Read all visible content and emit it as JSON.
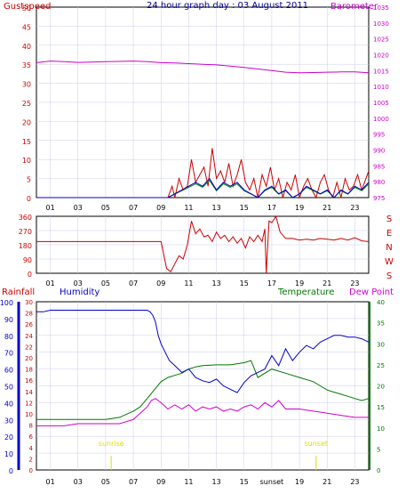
{
  "colors": {
    "gust": "#cc0000",
    "wind_avg": "#0000cc",
    "wind_gust_alt": "#008800",
    "pressure": "#cc00cc",
    "direction": "#cc0000",
    "humidity": "#0000cc",
    "temperature": "#007700",
    "dewpoint": "#cc00cc",
    "rainfall": "#cc0000",
    "title": "#000099",
    "sun": "#dddd00",
    "grid": "#ccccee",
    "frame": "#000000"
  },
  "chart_data": [
    {
      "type": "line",
      "title": "24 hour graph day : 03 August 2011",
      "left_axis_label": "Gustspeed",
      "right_axis_label": "Barometer",
      "left_ticks": [
        "50",
        "45",
        "40",
        "35",
        "30",
        "25",
        "20",
        "15",
        "10",
        "5",
        "0"
      ],
      "right_ticks": [
        "1035",
        "1030",
        "1025",
        "1020",
        "1015",
        "1010",
        "1005",
        "1000",
        "995",
        "990",
        "985",
        "980",
        "975"
      ],
      "x_ticks": [
        "01",
        "03",
        "05",
        "07",
        "09",
        "11",
        "13",
        "15",
        "17",
        "19",
        "21",
        "23"
      ],
      "ylim_left": [
        0,
        50
      ],
      "ylim_right": [
        975,
        1035
      ],
      "x_range": [
        0,
        24
      ],
      "grid": true,
      "series": [
        {
          "name": "Barometer",
          "axis": "right",
          "x": [
            0,
            1,
            2,
            3,
            4,
            5,
            6,
            7,
            8,
            9,
            10,
            11,
            12,
            13,
            14,
            15,
            16,
            17,
            18,
            19,
            20,
            21,
            22,
            23,
            24
          ],
          "values": [
            1017.5,
            1018.0,
            1017.8,
            1017.6,
            1017.7,
            1017.8,
            1017.9,
            1018.0,
            1017.8,
            1017.5,
            1017.4,
            1017.2,
            1017.0,
            1016.8,
            1016.4,
            1016.0,
            1015.5,
            1015.0,
            1014.5,
            1014.3,
            1014.4,
            1014.5,
            1014.6,
            1014.6,
            1014.3
          ]
        },
        {
          "name": "Gustspeed",
          "axis": "left",
          "x": [
            0,
            9.5,
            9.8,
            10.0,
            10.3,
            10.6,
            10.9,
            11.2,
            11.5,
            11.8,
            12.1,
            12.4,
            12.7,
            13.0,
            13.3,
            13.6,
            13.9,
            14.2,
            14.5,
            14.8,
            15.1,
            15.4,
            15.7,
            16.0,
            16.3,
            16.6,
            16.9,
            17.2,
            17.5,
            17.8,
            18.1,
            18.4,
            18.7,
            19.0,
            19.3,
            19.6,
            19.9,
            20.2,
            20.5,
            20.8,
            21.1,
            21.4,
            21.7,
            22.0,
            22.3,
            22.6,
            22.9,
            23.2,
            23.5,
            23.8,
            24.0
          ],
          "values": [
            0,
            0,
            3,
            0,
            5,
            2,
            3,
            10,
            4,
            6,
            8,
            3,
            13,
            5,
            7,
            4,
            9,
            3,
            6,
            10,
            4,
            2,
            5,
            0,
            6,
            3,
            8,
            2,
            5,
            0,
            4,
            2,
            6,
            0,
            3,
            5,
            2,
            0,
            4,
            6,
            2,
            0,
            4,
            0,
            5,
            2,
            3,
            6,
            2,
            5,
            7
          ]
        },
        {
          "name": "Average",
          "axis": "left",
          "x": [
            0,
            9.5,
            10.0,
            10.5,
            11.0,
            11.5,
            12.0,
            12.5,
            13.0,
            13.5,
            14.0,
            14.5,
            15.0,
            15.5,
            16.0,
            16.5,
            17.0,
            17.5,
            18.0,
            18.5,
            19.0,
            19.5,
            20.0,
            20.5,
            21.0,
            21.5,
            22.0,
            22.5,
            23.0,
            23.5,
            24.0
          ],
          "values": [
            0,
            0,
            1,
            2,
            3,
            4,
            3,
            5,
            2,
            4,
            3,
            4,
            2,
            1,
            0,
            2,
            3,
            1,
            2,
            0,
            1,
            3,
            2,
            1,
            2,
            0,
            2,
            1,
            3,
            2,
            4
          ]
        }
      ]
    },
    {
      "type": "line",
      "title": "",
      "left_ticks": [
        "360",
        "270",
        "180",
        "90",
        "0"
      ],
      "right_labels": [
        "S",
        "E",
        "N",
        "W",
        "S"
      ],
      "ylim": [
        0,
        360
      ],
      "x_range": [
        0,
        24
      ],
      "x_ticks": [
        "01",
        "03",
        "05",
        "07",
        "09",
        "11",
        "13",
        "15",
        "17",
        "19",
        "21",
        "23"
      ],
      "grid": true,
      "series": [
        {
          "name": "Wind Direction",
          "x": [
            0,
            1,
            2,
            3,
            4,
            5,
            6,
            7,
            8,
            9,
            9.1,
            9.4,
            9.7,
            10.0,
            10.3,
            10.6,
            10.9,
            11.2,
            11.5,
            11.8,
            12.1,
            12.4,
            12.7,
            13.0,
            13.3,
            13.6,
            13.9,
            14.2,
            14.5,
            14.8,
            15.1,
            15.4,
            15.7,
            16.0,
            16.3,
            16.5,
            16.6,
            16.8,
            17.0,
            17.3,
            17.6,
            18.0,
            18.5,
            19.0,
            19.5,
            20.0,
            20.5,
            21.0,
            21.5,
            22.0,
            22.5,
            23.0,
            23.5,
            24.0
          ],
          "values": [
            200,
            200,
            200,
            200,
            200,
            200,
            200,
            200,
            200,
            200,
            160,
            30,
            10,
            60,
            110,
            90,
            180,
            330,
            250,
            280,
            230,
            240,
            200,
            260,
            220,
            240,
            200,
            230,
            190,
            220,
            160,
            230,
            200,
            240,
            200,
            280,
            0,
            330,
            320,
            360,
            260,
            220,
            220,
            210,
            215,
            210,
            220,
            215,
            210,
            220,
            210,
            225,
            205,
            200
          ]
        }
      ]
    },
    {
      "type": "line",
      "title": "",
      "labels": {
        "rainfall": "Rainfall",
        "humidity": "Humidity",
        "temperature": "Temperature",
        "dewpoint": "Dew Point",
        "sunrise": "sunrise",
        "sunset": "sunset"
      },
      "humidity_ticks": [
        "100",
        "90",
        "80",
        "70",
        "60",
        "50",
        "40",
        "30",
        "20",
        "10",
        "0"
      ],
      "rain_ticks": [
        "30",
        "28",
        "26",
        "24",
        "22",
        "20",
        "18",
        "16",
        "14",
        "12",
        "10",
        "8",
        "6",
        "4",
        "2",
        "0"
      ],
      "temp_ticks": [
        "40",
        "35",
        "30",
        "25",
        "20",
        "15",
        "10",
        "5",
        "0"
      ],
      "x_ticks": [
        "01",
        "03",
        "05",
        "07",
        "09",
        "11",
        "13",
        "15",
        "sunset",
        "19",
        "21",
        "23"
      ],
      "x_range": [
        0,
        24
      ],
      "ylim_humidity": [
        0,
        100
      ],
      "ylim_temperature": [
        0,
        40
      ],
      "sunrise_hour": 5.4,
      "sunset_hour": 20.2,
      "grid": true,
      "series": [
        {
          "name": "Humidity",
          "axis": "humidity",
          "x": [
            0,
            0.5,
            1,
            2,
            3,
            4,
            5,
            6,
            7,
            7.5,
            8,
            8.2,
            8.4,
            8.6,
            8.8,
            9.0,
            9.3,
            9.6,
            10.0,
            10.5,
            11.0,
            11.5,
            12.0,
            12.5,
            13.0,
            13.5,
            14.0,
            14.5,
            15.0,
            15.5,
            16.0,
            16.5,
            17.0,
            17.5,
            18.0,
            18.5,
            19.0,
            19.5,
            20.0,
            20.5,
            21.0,
            21.5,
            22.0,
            22.5,
            23.0,
            23.5,
            24.0
          ],
          "values": [
            94,
            94,
            95,
            95,
            95,
            95,
            95,
            95,
            95,
            95,
            95,
            94,
            92,
            88,
            80,
            75,
            70,
            65,
            62,
            58,
            60,
            55,
            53,
            52,
            54,
            50,
            48,
            46,
            52,
            56,
            58,
            60,
            68,
            62,
            72,
            65,
            70,
            74,
            72,
            76,
            78,
            80,
            80,
            79,
            79,
            78,
            76
          ]
        },
        {
          "name": "Temperature",
          "axis": "temperature",
          "x": [
            0,
            1,
            2,
            3,
            4,
            5,
            6,
            7,
            7.5,
            8,
            8.5,
            9,
            9.5,
            10,
            10.5,
            11,
            11.5,
            12,
            13,
            14,
            15,
            15.5,
            16,
            17,
            18,
            19,
            20,
            20.5,
            21,
            21.5,
            22,
            22.5,
            23,
            23.5,
            24
          ],
          "values": [
            12,
            12,
            12,
            12,
            12,
            12,
            12.5,
            14,
            15,
            17,
            19,
            21,
            22,
            22.5,
            23,
            24,
            24.5,
            24.8,
            25,
            25,
            25.5,
            26,
            22,
            24,
            23,
            22,
            21,
            20,
            19,
            18.5,
            18,
            17.5,
            17,
            16.5,
            17
          ]
        },
        {
          "name": "Dew Point",
          "axis": "temperature",
          "x": [
            0,
            1,
            2,
            3,
            4,
            5,
            6,
            7,
            7.5,
            8,
            8.3,
            8.6,
            9,
            9.5,
            10,
            10.5,
            11,
            11.5,
            12,
            12.5,
            13,
            13.5,
            14,
            14.5,
            15,
            15.5,
            16,
            16.5,
            17,
            17.5,
            18,
            19,
            20,
            21,
            22,
            23,
            24
          ],
          "values": [
            10.5,
            10.5,
            10.5,
            11,
            11,
            11,
            11,
            12,
            13.5,
            15,
            16.5,
            17,
            16,
            14.5,
            15.5,
            14.5,
            15.5,
            14,
            15,
            14.5,
            15,
            14,
            14.5,
            14,
            15,
            15.5,
            14.5,
            16,
            15,
            16.5,
            14.5,
            14.5,
            14,
            13.5,
            13,
            12.5,
            12.5
          ]
        }
      ]
    }
  ]
}
